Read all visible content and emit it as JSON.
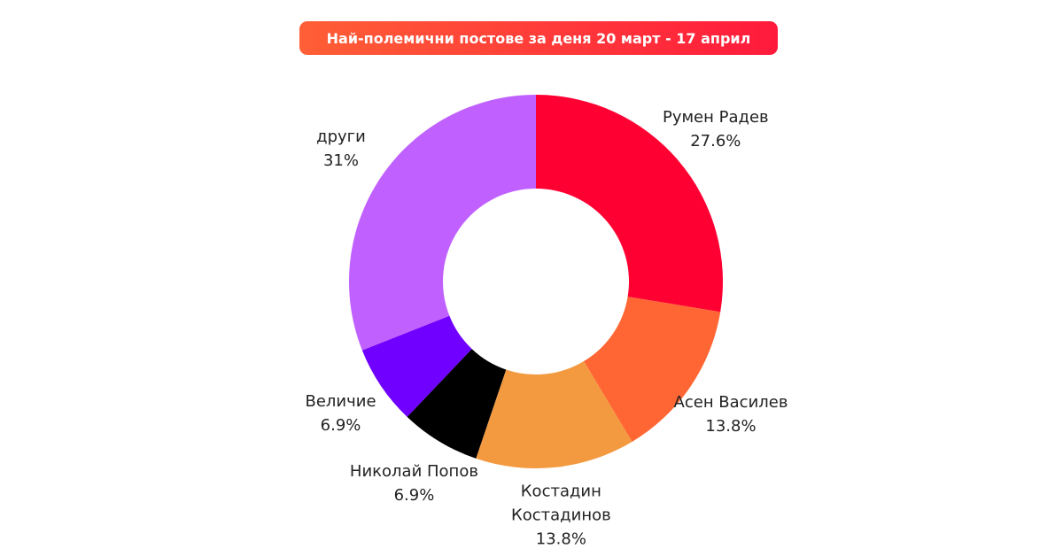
{
  "chart_data": {
    "type": "donut",
    "title": "Най-полемични постове за деня 20 март - 17 април",
    "categories": [
      "Румен Радев",
      "Асен Василев",
      "Костадин Костадинов",
      "Николай Попов",
      "Величие",
      "други"
    ],
    "values": [
      27.6,
      13.8,
      13.8,
      6.9,
      6.9,
      31
    ],
    "value_labels": [
      "27.6%",
      "13.8%",
      "13.8%",
      "6.9%",
      "6.9%",
      "31%"
    ],
    "colors": [
      "#ff0033",
      "#ff6633",
      "#f39a41",
      "#000000",
      "#7000ff",
      "#c061ff"
    ]
  }
}
